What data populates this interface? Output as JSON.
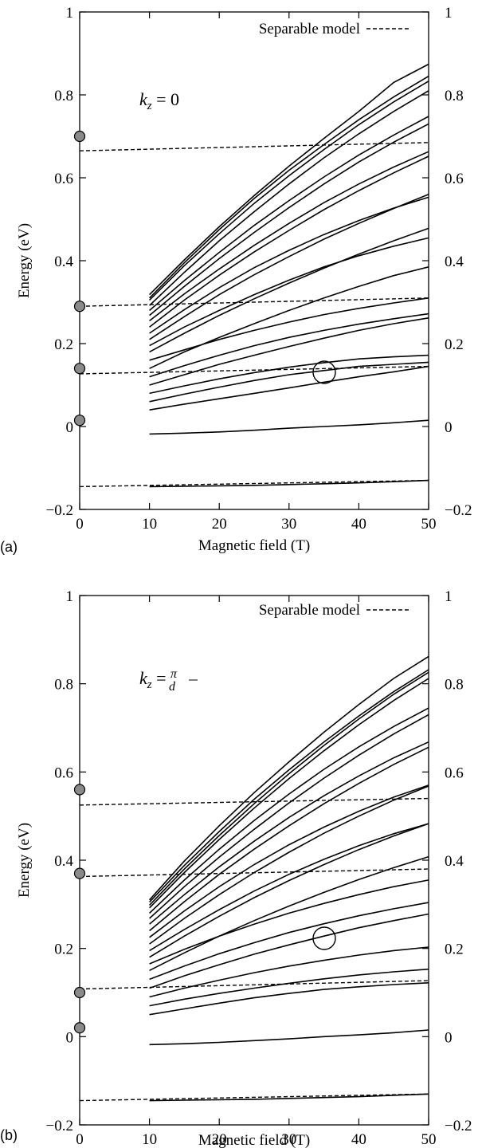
{
  "chart_data": [
    {
      "type": "line",
      "panel_label": "(a)",
      "annotation": "k_z = 0",
      "xlabel": "Magnetic field (T)",
      "ylabel": "Energy (eV)",
      "xlim": [
        0,
        50
      ],
      "ylim": [
        -0.2,
        1.0
      ],
      "x_ticks": [
        0,
        10,
        20,
        30,
        40,
        50
      ],
      "y_ticks": [
        -0.2,
        0,
        0.2,
        0.4,
        0.6,
        0.8,
        1
      ],
      "y_tick_labels": [
        "−0.2",
        "0",
        "0.2",
        "0.4",
        "0.6",
        "0.8",
        "1"
      ],
      "legend": {
        "label": "Separable model",
        "placement": "top-right"
      },
      "zero_field_points": [
        0.7,
        0.29,
        0.14,
        0.015
      ],
      "separable_levels": [
        {
          "y0": -0.145,
          "y1": -0.13
        },
        {
          "y0": 0.127,
          "y1": 0.145
        },
        {
          "y0": 0.29,
          "y1": 0.31
        },
        {
          "y0": 0.665,
          "y1": 0.685
        }
      ],
      "series_x": [
        10,
        15,
        20,
        25,
        30,
        35,
        40,
        45,
        50
      ],
      "series": [
        {
          "values": [
            -0.145,
            -0.144,
            -0.143,
            -0.142,
            -0.14,
            -0.138,
            -0.136,
            -0.133,
            -0.13
          ]
        },
        {
          "values": [
            -0.018,
            -0.016,
            -0.013,
            -0.009,
            -0.004,
            0.0,
            0.004,
            0.009,
            0.015
          ]
        },
        {
          "values": [
            0.04,
            0.054,
            0.067,
            0.08,
            0.093,
            0.107,
            0.12,
            0.132,
            0.145
          ]
        },
        {
          "values": [
            0.06,
            0.078,
            0.095,
            0.111,
            0.125,
            0.135,
            0.145,
            0.15,
            0.155
          ]
        },
        {
          "values": [
            0.08,
            0.098,
            0.115,
            0.13,
            0.143,
            0.154,
            0.163,
            0.168,
            0.172
          ]
        },
        {
          "values": [
            0.1,
            0.125,
            0.15,
            0.172,
            0.193,
            0.213,
            0.232,
            0.248,
            0.262
          ]
        },
        {
          "values": [
            0.12,
            0.147,
            0.172,
            0.195,
            0.215,
            0.232,
            0.247,
            0.26,
            0.272
          ]
        },
        {
          "values": [
            0.14,
            0.18,
            0.215,
            0.248,
            0.28,
            0.31,
            0.338,
            0.364,
            0.385
          ]
        },
        {
          "values": [
            0.16,
            0.185,
            0.21,
            0.232,
            0.252,
            0.27,
            0.285,
            0.298,
            0.31
          ]
        },
        {
          "values": [
            0.18,
            0.225,
            0.268,
            0.308,
            0.346,
            0.382,
            0.416,
            0.448,
            0.478
          ]
        },
        {
          "values": [
            0.195,
            0.24,
            0.28,
            0.318,
            0.353,
            0.385,
            0.412,
            0.435,
            0.455
          ]
        },
        {
          "values": [
            0.21,
            0.265,
            0.318,
            0.366,
            0.41,
            0.452,
            0.49,
            0.526,
            0.56
          ]
        },
        {
          "values": [
            0.225,
            0.282,
            0.335,
            0.383,
            0.425,
            0.463,
            0.497,
            0.527,
            0.553
          ]
        },
        {
          "values": [
            0.24,
            0.305,
            0.365,
            0.421,
            0.473,
            0.523,
            0.569,
            0.612,
            0.652
          ]
        },
        {
          "values": [
            0.255,
            0.32,
            0.38,
            0.437,
            0.49,
            0.54,
            0.585,
            0.626,
            0.663
          ]
        },
        {
          "values": [
            0.268,
            0.338,
            0.405,
            0.468,
            0.528,
            0.585,
            0.638,
            0.686,
            0.73
          ]
        },
        {
          "values": [
            0.28,
            0.352,
            0.42,
            0.485,
            0.545,
            0.602,
            0.655,
            0.703,
            0.748
          ]
        },
        {
          "values": [
            0.292,
            0.372,
            0.448,
            0.518,
            0.585,
            0.648,
            0.706,
            0.76,
            0.81
          ]
        },
        {
          "values": [
            0.305,
            0.388,
            0.465,
            0.538,
            0.605,
            0.668,
            0.728,
            0.783,
            0.833
          ]
        },
        {
          "values": [
            0.318,
            0.402,
            0.482,
            0.557,
            0.628,
            0.695,
            0.76,
            0.83,
            0.874
          ]
        },
        {
          "values": [
            0.31,
            0.395,
            0.475,
            0.55,
            0.618,
            0.68,
            0.74,
            0.795,
            0.845
          ]
        }
      ]
    },
    {
      "type": "line",
      "panel_label": "(b)",
      "annotation": "k_z = π/d",
      "xlabel": "Magnetic field (T)",
      "ylabel": "Energy (eV)",
      "xlim": [
        0,
        50
      ],
      "ylim": [
        -0.2,
        1.0
      ],
      "x_ticks": [
        0,
        10,
        20,
        30,
        40,
        50
      ],
      "y_ticks": [
        -0.2,
        0,
        0.2,
        0.4,
        0.6,
        0.8,
        1
      ],
      "y_tick_labels": [
        "−0.2",
        "0",
        "0.2",
        "0.4",
        "0.6",
        "0.8",
        "1"
      ],
      "legend": {
        "label": "Separable model",
        "placement": "top-right"
      },
      "zero_field_points": [
        0.56,
        0.37,
        0.1,
        0.02
      ],
      "separable_levels": [
        {
          "y0": -0.145,
          "y1": -0.13
        },
        {
          "y0": 0.108,
          "y1": 0.127
        },
        {
          "y0": 0.363,
          "y1": 0.38
        },
        {
          "y0": 0.525,
          "y1": 0.54
        }
      ],
      "series_x": [
        10,
        15,
        20,
        25,
        30,
        35,
        40,
        45,
        50
      ],
      "series": [
        {
          "values": [
            -0.145,
            -0.144,
            -0.143,
            -0.142,
            -0.14,
            -0.138,
            -0.136,
            -0.133,
            -0.13
          ]
        },
        {
          "values": [
            -0.018,
            -0.016,
            -0.013,
            -0.009,
            -0.005,
            0.0,
            0.004,
            0.009,
            0.015
          ]
        },
        {
          "values": [
            0.05,
            0.063,
            0.076,
            0.088,
            0.098,
            0.107,
            0.113,
            0.118,
            0.122
          ]
        },
        {
          "values": [
            0.07,
            0.085,
            0.098,
            0.11,
            0.121,
            0.131,
            0.14,
            0.147,
            0.153
          ]
        },
        {
          "values": [
            0.09,
            0.11,
            0.128,
            0.145,
            0.16,
            0.173,
            0.185,
            0.195,
            0.203
          ]
        },
        {
          "values": [
            0.11,
            0.138,
            0.163,
            0.187,
            0.208,
            0.228,
            0.247,
            0.263,
            0.278
          ]
        },
        {
          "values": [
            0.13,
            0.16,
            0.188,
            0.213,
            0.236,
            0.256,
            0.274,
            0.29,
            0.304
          ]
        },
        {
          "values": [
            0.15,
            0.19,
            0.228,
            0.263,
            0.296,
            0.327,
            0.356,
            0.383,
            0.408
          ]
        },
        {
          "values": [
            0.165,
            0.198,
            0.228,
            0.255,
            0.28,
            0.302,
            0.322,
            0.34,
            0.355
          ]
        },
        {
          "values": [
            0.18,
            0.228,
            0.273,
            0.315,
            0.354,
            0.39,
            0.424,
            0.455,
            0.483
          ]
        },
        {
          "values": [
            0.195,
            0.243,
            0.288,
            0.33,
            0.368,
            0.402,
            0.433,
            0.46,
            0.483
          ]
        },
        {
          "values": [
            0.21,
            0.268,
            0.322,
            0.372,
            0.418,
            0.461,
            0.5,
            0.536,
            0.568
          ]
        },
        {
          "values": [
            0.225,
            0.285,
            0.34,
            0.39,
            0.435,
            0.475,
            0.511,
            0.543,
            0.57
          ]
        },
        {
          "values": [
            0.24,
            0.306,
            0.368,
            0.425,
            0.478,
            0.528,
            0.574,
            0.617,
            0.656
          ]
        },
        {
          "values": [
            0.255,
            0.322,
            0.385,
            0.443,
            0.497,
            0.546,
            0.591,
            0.632,
            0.668
          ]
        },
        {
          "values": [
            0.268,
            0.34,
            0.407,
            0.47,
            0.53,
            0.586,
            0.638,
            0.686,
            0.73
          ]
        },
        {
          "values": [
            0.28,
            0.355,
            0.425,
            0.49,
            0.55,
            0.606,
            0.657,
            0.703,
            0.745
          ]
        },
        {
          "values": [
            0.292,
            0.372,
            0.447,
            0.518,
            0.585,
            0.648,
            0.707,
            0.762,
            0.812
          ]
        },
        {
          "values": [
            0.305,
            0.388,
            0.465,
            0.538,
            0.605,
            0.668,
            0.727,
            0.782,
            0.832
          ]
        },
        {
          "values": [
            0.31,
            0.398,
            0.478,
            0.553,
            0.623,
            0.69,
            0.753,
            0.812,
            0.862
          ]
        },
        {
          "values": [
            0.298,
            0.38,
            0.456,
            0.528,
            0.596,
            0.66,
            0.72,
            0.776,
            0.826
          ]
        }
      ]
    }
  ]
}
